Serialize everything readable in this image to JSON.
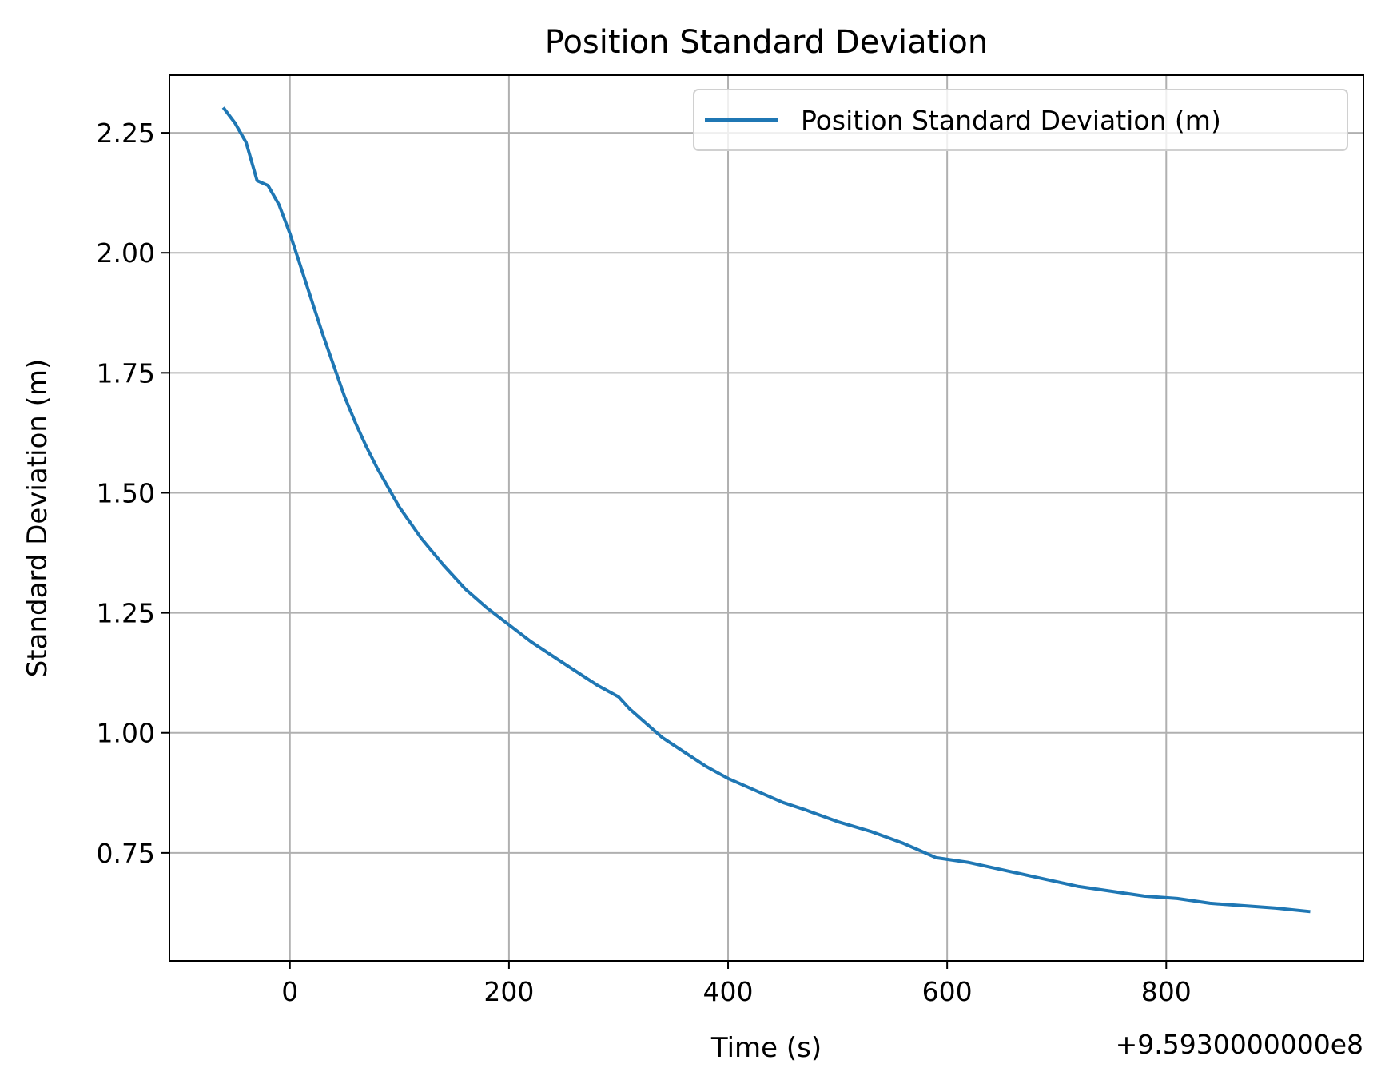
{
  "chart_data": {
    "type": "line",
    "title": "Position Standard Deviation",
    "xlabel": "Time (s)",
    "ylabel": "Standard Deviation (m)",
    "x_offset_label": "+9.5930000000e8",
    "x_offset": 959300000,
    "xlim": [
      -110,
      980
    ],
    "ylim": [
      0.525,
      2.37
    ],
    "x_ticks": [
      0,
      200,
      400,
      600,
      800
    ],
    "x_tick_labels": [
      "0",
      "200",
      "400",
      "600",
      "800"
    ],
    "y_ticks": [
      0.75,
      1.0,
      1.25,
      1.5,
      1.75,
      2.0,
      2.25
    ],
    "y_tick_labels": [
      "0.75",
      "1.00",
      "1.25",
      "1.50",
      "1.75",
      "2.00",
      "2.25"
    ],
    "grid": true,
    "legend_position": "top-right",
    "series": [
      {
        "name": "Position Standard Deviation (m)",
        "color": "#1f77b4",
        "x": [
          -60,
          -50,
          -40,
          -30,
          -20,
          -10,
          0,
          10,
          20,
          30,
          40,
          50,
          60,
          70,
          80,
          90,
          100,
          120,
          140,
          160,
          180,
          200,
          220,
          240,
          260,
          280,
          300,
          310,
          320,
          340,
          360,
          380,
          400,
          420,
          430,
          450,
          470,
          500,
          530,
          560,
          590,
          620,
          640,
          660,
          680,
          700,
          720,
          750,
          780,
          810,
          840,
          870,
          900,
          930
        ],
        "y": [
          2.3,
          2.27,
          2.23,
          2.15,
          2.14,
          2.1,
          2.04,
          1.97,
          1.9,
          1.83,
          1.765,
          1.7,
          1.645,
          1.595,
          1.55,
          1.51,
          1.47,
          1.405,
          1.35,
          1.3,
          1.26,
          1.225,
          1.19,
          1.16,
          1.13,
          1.1,
          1.075,
          1.05,
          1.03,
          0.99,
          0.96,
          0.93,
          0.905,
          0.885,
          0.875,
          0.855,
          0.84,
          0.815,
          0.795,
          0.77,
          0.74,
          0.73,
          0.72,
          0.71,
          0.7,
          0.69,
          0.68,
          0.67,
          0.66,
          0.655,
          0.645,
          0.64,
          0.635,
          0.628
        ]
      }
    ]
  }
}
